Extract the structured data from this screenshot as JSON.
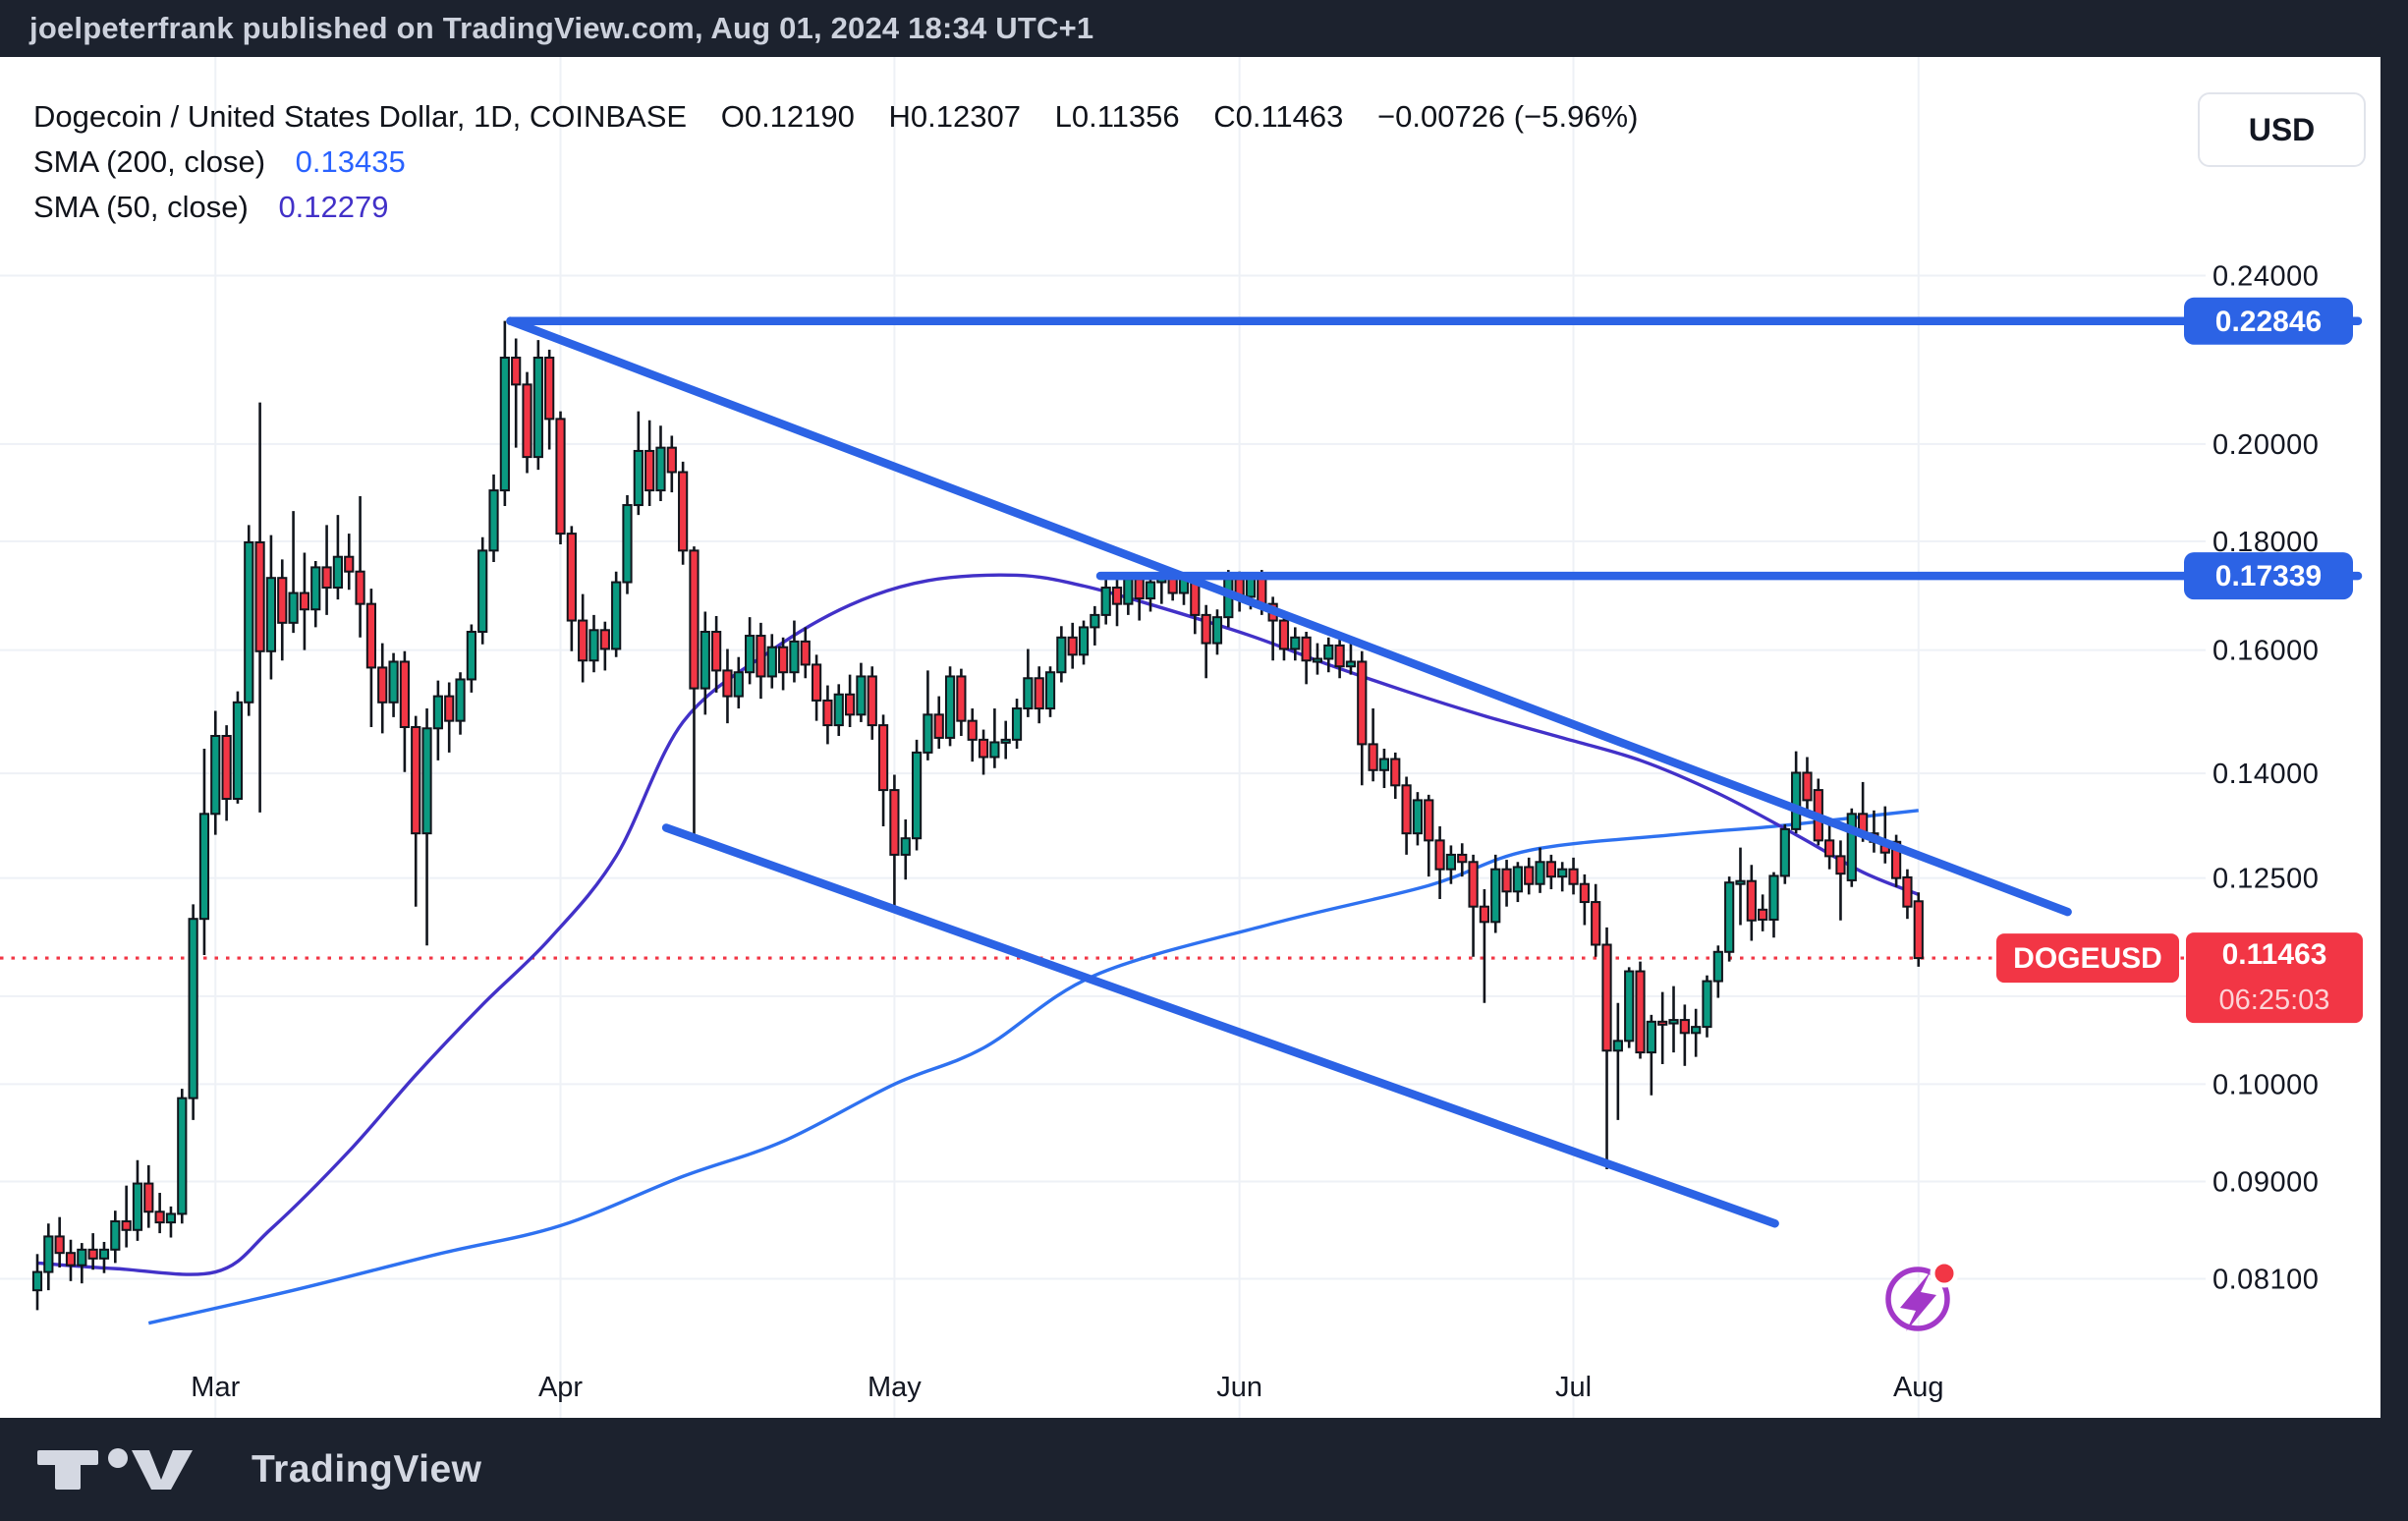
{
  "banner": {
    "text": "joelpeterfrank published on TradingView.com, Aug 01, 2024 18:34 UTC+1"
  },
  "header": {
    "title": "Dogecoin / United States Dollar, 1D, COINBASE",
    "ohlc": [
      {
        "k": "O",
        "v": "0.12190"
      },
      {
        "k": "H",
        "v": "0.12307"
      },
      {
        "k": "L",
        "v": "0.11356"
      },
      {
        "k": "C",
        "v": "0.11463"
      }
    ],
    "change": "−0.00726 (−5.96%)",
    "indicators": [
      {
        "label": "SMA (200, close)",
        "value": "0.13435",
        "color": "#2962ff"
      },
      {
        "label": "SMA (50, close)",
        "value": "0.12279",
        "color": "#4231c8"
      }
    ]
  },
  "currency_button": "USD",
  "footer": {
    "brand": "TradingView"
  },
  "chart_data": {
    "type": "candlestick",
    "title": "DOGEUSD 1D COINBASE",
    "x_range_dates": [
      "2024-02-14",
      "2024-08-01"
    ],
    "scale": "log",
    "plot": {
      "top": 58,
      "bottom": 1443,
      "right": 2225,
      "page_right": 2423,
      "x0": 38,
      "dx": 11.33
    },
    "log_map": {
      "a": -1061,
      "b": 940
    },
    "colors": {
      "up": "#0a9a81",
      "down": "#f23645",
      "outline": "#11151c",
      "grid": "#eef1f6",
      "drawing": "#2c63e5",
      "sma200": "#2e71f0",
      "sma50": "#4231c8",
      "last": "#f23645",
      "axis_text": "#131722",
      "bg": "#ffffff",
      "icon": "#a238c8"
    },
    "y_ticks": [
      {
        "p": 0.24,
        "label": "0.24000"
      },
      {
        "p": 0.2,
        "label": "0.20000"
      },
      {
        "p": 0.18,
        "label": "0.18000"
      },
      {
        "p": 0.16,
        "label": "0.16000"
      },
      {
        "p": 0.14,
        "label": "0.14000"
      },
      {
        "p": 0.125,
        "label": "0.12500"
      },
      {
        "p": 0.11,
        "label": ""
      },
      {
        "p": 0.1,
        "label": "0.10000"
      },
      {
        "p": 0.09,
        "label": "0.09000"
      },
      {
        "p": 0.081,
        "label": "0.08100"
      }
    ],
    "x_ticks": [
      {
        "i": 16,
        "label": "Mar"
      },
      {
        "i": 47,
        "label": "Apr"
      },
      {
        "i": 77,
        "label": "May"
      },
      {
        "i": 108,
        "label": "Jun"
      },
      {
        "i": 138,
        "label": "Jul"
      },
      {
        "i": 169,
        "label": "Aug"
      }
    ],
    "levels": [
      {
        "price": 0.22846,
        "label": "0.22846",
        "from_i": 42.5
      },
      {
        "price": 0.17339,
        "label": "0.17339",
        "from_i": 95.5
      }
    ],
    "trendlines": [
      {
        "from": [
          42.5,
          0.2285
        ],
        "to": [
          182.4,
          0.1205
        ]
      },
      {
        "from": [
          56.5,
          0.132
        ],
        "to": [
          156.1,
          0.086
        ]
      }
    ],
    "last": {
      "symbol": "DOGEUSD",
      "price": "0.11463",
      "countdown": "06:25:03",
      "value": 0.11463
    },
    "sma200_points": [
      [
        10,
        0.0772
      ],
      [
        23,
        0.08
      ],
      [
        36,
        0.0832
      ],
      [
        47,
        0.0858
      ],
      [
        58,
        0.0905
      ],
      [
        67,
        0.094
      ],
      [
        77,
        0.1
      ],
      [
        85,
        0.104
      ],
      [
        95,
        0.1125
      ],
      [
        111,
        0.119
      ],
      [
        125,
        0.124
      ],
      [
        134,
        0.1288
      ],
      [
        147,
        0.131
      ],
      [
        156,
        0.1322
      ],
      [
        164,
        0.1336
      ],
      [
        169,
        0.1345
      ]
    ],
    "sma50_points": [
      [
        0,
        0.0824
      ],
      [
        7,
        0.0819
      ],
      [
        16,
        0.0816
      ],
      [
        21,
        0.0855
      ],
      [
        28,
        0.093
      ],
      [
        34,
        0.101
      ],
      [
        40,
        0.109
      ],
      [
        46,
        0.117
      ],
      [
        52,
        0.128
      ],
      [
        58,
        0.148
      ],
      [
        66,
        0.16
      ],
      [
        73,
        0.168
      ],
      [
        80,
        0.1725
      ],
      [
        88,
        0.1735
      ],
      [
        94,
        0.1715
      ],
      [
        101,
        0.1675
      ],
      [
        109,
        0.1625
      ],
      [
        116,
        0.1575
      ],
      [
        123,
        0.153
      ],
      [
        130,
        0.149
      ],
      [
        137,
        0.1455
      ],
      [
        144,
        0.142
      ],
      [
        151,
        0.137
      ],
      [
        158,
        0.131
      ],
      [
        164,
        0.1258
      ],
      [
        169,
        0.1228
      ]
    ],
    "candles": [
      [
        0.08,
        0.0832,
        0.0783,
        0.0816
      ],
      [
        0.0816,
        0.086,
        0.08,
        0.0848
      ],
      [
        0.0848,
        0.0866,
        0.082,
        0.0833
      ],
      [
        0.0833,
        0.0845,
        0.0808,
        0.0822
      ],
      [
        0.0822,
        0.0842,
        0.0806,
        0.0836
      ],
      [
        0.0836,
        0.0851,
        0.0818,
        0.0828
      ],
      [
        0.0828,
        0.0843,
        0.0815,
        0.0836
      ],
      [
        0.0836,
        0.0872,
        0.0824,
        0.0862
      ],
      [
        0.0862,
        0.0896,
        0.0838,
        0.0854
      ],
      [
        0.0854,
        0.0921,
        0.0844,
        0.0898
      ],
      [
        0.0898,
        0.0916,
        0.0856,
        0.0871
      ],
      [
        0.0871,
        0.0889,
        0.0851,
        0.0861
      ],
      [
        0.0861,
        0.0876,
        0.0847,
        0.0869
      ],
      [
        0.0869,
        0.0995,
        0.086,
        0.0985
      ],
      [
        0.0985,
        0.1215,
        0.0962,
        0.1196
      ],
      [
        0.1196,
        0.1438,
        0.115,
        0.134
      ],
      [
        0.134,
        0.1498,
        0.131,
        0.1458
      ],
      [
        0.1458,
        0.1475,
        0.133,
        0.1362
      ],
      [
        0.1362,
        0.153,
        0.1355,
        0.1512
      ],
      [
        0.1512,
        0.1832,
        0.149,
        0.1798
      ],
      [
        0.1798,
        0.2092,
        0.1342,
        0.1598
      ],
      [
        0.1598,
        0.1812,
        0.155,
        0.173
      ],
      [
        0.173,
        0.1765,
        0.1582,
        0.1648
      ],
      [
        0.1648,
        0.186,
        0.163,
        0.1702
      ],
      [
        0.1702,
        0.1778,
        0.16,
        0.1672
      ],
      [
        0.1672,
        0.1762,
        0.164,
        0.175
      ],
      [
        0.175,
        0.1832,
        0.1662,
        0.1712
      ],
      [
        0.1712,
        0.1852,
        0.169,
        0.177
      ],
      [
        0.177,
        0.1815,
        0.1708,
        0.1742
      ],
      [
        0.1742,
        0.189,
        0.1622,
        0.1682
      ],
      [
        0.1682,
        0.171,
        0.1472,
        0.157
      ],
      [
        0.157,
        0.1612,
        0.1462,
        0.1512
      ],
      [
        0.1512,
        0.1595,
        0.1488,
        0.158
      ],
      [
        0.158,
        0.1598,
        0.1402,
        0.1472
      ],
      [
        0.1472,
        0.149,
        0.1212,
        0.1312
      ],
      [
        0.1312,
        0.1502,
        0.1162,
        0.147
      ],
      [
        0.147,
        0.1548,
        0.142,
        0.1522
      ],
      [
        0.1522,
        0.1545,
        0.1432,
        0.1482
      ],
      [
        0.1482,
        0.1562,
        0.146,
        0.155
      ],
      [
        0.155,
        0.1645,
        0.1528,
        0.1632
      ],
      [
        0.1632,
        0.1808,
        0.161,
        0.1782
      ],
      [
        0.1782,
        0.1935,
        0.176,
        0.1902
      ],
      [
        0.1902,
        0.2285,
        0.187,
        0.2196
      ],
      [
        0.2196,
        0.2242,
        0.1992,
        0.2133
      ],
      [
        0.2133,
        0.2162,
        0.1938,
        0.1972
      ],
      [
        0.1972,
        0.2238,
        0.1945,
        0.2196
      ],
      [
        0.2196,
        0.2215,
        0.1988,
        0.2055
      ],
      [
        0.2055,
        0.2072,
        0.1794,
        0.1815
      ],
      [
        0.1815,
        0.183,
        0.1598,
        0.1652
      ],
      [
        0.1652,
        0.17,
        0.1545,
        0.1582
      ],
      [
        0.1582,
        0.1662,
        0.1562,
        0.1635
      ],
      [
        0.1635,
        0.165,
        0.1565,
        0.1602
      ],
      [
        0.1602,
        0.1742,
        0.1588,
        0.1722
      ],
      [
        0.1722,
        0.1892,
        0.17,
        0.1872
      ],
      [
        0.1872,
        0.2072,
        0.1852,
        0.1985
      ],
      [
        0.1985,
        0.2052,
        0.187,
        0.1902
      ],
      [
        0.1902,
        0.204,
        0.188,
        0.1992
      ],
      [
        0.1992,
        0.2018,
        0.1898,
        0.194
      ],
      [
        0.194,
        0.1962,
        0.1755,
        0.1782
      ],
      [
        0.1782,
        0.179,
        0.1308,
        0.1535
      ],
      [
        0.1535,
        0.1668,
        0.1492,
        0.1632
      ],
      [
        0.1632,
        0.166,
        0.1528,
        0.1565
      ],
      [
        0.1565,
        0.1602,
        0.1478,
        0.1522
      ],
      [
        0.1522,
        0.1588,
        0.1502,
        0.1562
      ],
      [
        0.1562,
        0.1658,
        0.1542,
        0.1625
      ],
      [
        0.1625,
        0.1648,
        0.1518,
        0.1555
      ],
      [
        0.1555,
        0.1628,
        0.1535,
        0.1605
      ],
      [
        0.1605,
        0.1622,
        0.1532,
        0.1562
      ],
      [
        0.1562,
        0.1652,
        0.1545,
        0.1615
      ],
      [
        0.1615,
        0.164,
        0.1552,
        0.1575
      ],
      [
        0.1575,
        0.1592,
        0.1482,
        0.1515
      ],
      [
        0.1515,
        0.154,
        0.1445,
        0.1475
      ],
      [
        0.1475,
        0.1542,
        0.1458,
        0.1525
      ],
      [
        0.1525,
        0.1558,
        0.1472,
        0.1492
      ],
      [
        0.1492,
        0.1578,
        0.148,
        0.1555
      ],
      [
        0.1555,
        0.1572,
        0.1452,
        0.1475
      ],
      [
        0.1475,
        0.1492,
        0.1322,
        0.1375
      ],
      [
        0.1375,
        0.1398,
        0.1208,
        0.1282
      ],
      [
        0.1282,
        0.1332,
        0.1248,
        0.1305
      ],
      [
        0.1305,
        0.1452,
        0.1288,
        0.1432
      ],
      [
        0.1432,
        0.1565,
        0.142,
        0.1492
      ],
      [
        0.1492,
        0.1522,
        0.1438,
        0.1455
      ],
      [
        0.1455,
        0.1572,
        0.1442,
        0.1555
      ],
      [
        0.1555,
        0.1568,
        0.1458,
        0.1482
      ],
      [
        0.1482,
        0.1502,
        0.1418,
        0.1452
      ],
      [
        0.1452,
        0.1468,
        0.1398,
        0.1425
      ],
      [
        0.1425,
        0.1502,
        0.1408,
        0.1448
      ],
      [
        0.1448,
        0.1482,
        0.1422,
        0.1452
      ],
      [
        0.1452,
        0.1518,
        0.1438,
        0.1502
      ],
      [
        0.1502,
        0.1602,
        0.1488,
        0.1552
      ],
      [
        0.1552,
        0.1572,
        0.1478,
        0.1502
      ],
      [
        0.1502,
        0.1572,
        0.1488,
        0.1562
      ],
      [
        0.1562,
        0.1642,
        0.1545,
        0.1622
      ],
      [
        0.1622,
        0.1648,
        0.1568,
        0.1592
      ],
      [
        0.1592,
        0.1652,
        0.1575,
        0.164
      ],
      [
        0.164,
        0.1678,
        0.1608,
        0.1662
      ],
      [
        0.1662,
        0.1732,
        0.1645,
        0.1712
      ],
      [
        0.1712,
        0.1728,
        0.1642,
        0.1682
      ],
      [
        0.1682,
        0.1734,
        0.1662,
        0.1728
      ],
      [
        0.1728,
        0.174,
        0.1652,
        0.1692
      ],
      [
        0.1692,
        0.1738,
        0.1668,
        0.1722
      ],
      [
        0.1722,
        0.1734,
        0.1682,
        0.173
      ],
      [
        0.173,
        0.1738,
        0.1688,
        0.1702
      ],
      [
        0.1702,
        0.1734,
        0.168,
        0.1728
      ],
      [
        0.1728,
        0.1735,
        0.1628,
        0.1662
      ],
      [
        0.1662,
        0.168,
        0.1552,
        0.1612
      ],
      [
        0.1612,
        0.1672,
        0.1592,
        0.1658
      ],
      [
        0.1658,
        0.1745,
        0.164,
        0.1728
      ],
      [
        0.1728,
        0.1742,
        0.1668,
        0.1695
      ],
      [
        0.1695,
        0.174,
        0.1672,
        0.1732
      ],
      [
        0.1732,
        0.1745,
        0.1662,
        0.1682
      ],
      [
        0.1682,
        0.1695,
        0.1582,
        0.1652
      ],
      [
        0.1652,
        0.1668,
        0.1582,
        0.1602
      ],
      [
        0.1602,
        0.164,
        0.1582,
        0.1622
      ],
      [
        0.1622,
        0.1632,
        0.1542,
        0.1582
      ],
      [
        0.1582,
        0.1612,
        0.1558,
        0.1585
      ],
      [
        0.1585,
        0.1622,
        0.1562,
        0.1608
      ],
      [
        0.1608,
        0.1618,
        0.1552,
        0.1572
      ],
      [
        0.1572,
        0.1622,
        0.1558,
        0.158
      ],
      [
        0.158,
        0.1598,
        0.1382,
        0.1445
      ],
      [
        0.1445,
        0.1502,
        0.1388,
        0.1405
      ],
      [
        0.1405,
        0.1438,
        0.1378,
        0.1422
      ],
      [
        0.1422,
        0.1432,
        0.1362,
        0.1382
      ],
      [
        0.1382,
        0.1395,
        0.1282,
        0.1312
      ],
      [
        0.1312,
        0.1372,
        0.1295,
        0.136
      ],
      [
        0.136,
        0.1368,
        0.1252,
        0.1302
      ],
      [
        0.1302,
        0.1322,
        0.1222,
        0.1262
      ],
      [
        0.1262,
        0.1295,
        0.1242,
        0.1282
      ],
      [
        0.1282,
        0.1298,
        0.1252,
        0.1272
      ],
      [
        0.1272,
        0.1282,
        0.1148,
        0.1212
      ],
      [
        0.1212,
        0.1235,
        0.1092,
        0.1192
      ],
      [
        0.1192,
        0.1282,
        0.1178,
        0.1262
      ],
      [
        0.1262,
        0.1275,
        0.1212,
        0.1232
      ],
      [
        0.1232,
        0.1272,
        0.1218,
        0.1265
      ],
      [
        0.1265,
        0.1278,
        0.1228,
        0.1242
      ],
      [
        0.1242,
        0.1292,
        0.123,
        0.1272
      ],
      [
        0.1272,
        0.1282,
        0.1235,
        0.1252
      ],
      [
        0.1252,
        0.1272,
        0.1232,
        0.1262
      ],
      [
        0.1262,
        0.1278,
        0.1228,
        0.1242
      ],
      [
        0.1242,
        0.1255,
        0.1188,
        0.1218
      ],
      [
        0.1218,
        0.1242,
        0.1148,
        0.1163
      ],
      [
        0.1163,
        0.1185,
        0.0912,
        0.1037
      ],
      [
        0.1037,
        0.1092,
        0.0962,
        0.1048
      ],
      [
        0.1048,
        0.1135,
        0.104,
        0.113
      ],
      [
        0.113,
        0.1142,
        0.1028,
        0.1035
      ],
      [
        0.1035,
        0.1078,
        0.0988,
        0.107
      ],
      [
        0.107,
        0.1105,
        0.1022,
        0.1068
      ],
      [
        0.1068,
        0.1112,
        0.1035,
        0.1072
      ],
      [
        0.1072,
        0.109,
        0.102,
        0.1057
      ],
      [
        0.1057,
        0.1085,
        0.103,
        0.1064
      ],
      [
        0.1064,
        0.1125,
        0.1052,
        0.1118
      ],
      [
        0.1118,
        0.1162,
        0.1098,
        0.1154
      ],
      [
        0.1154,
        0.1252,
        0.1142,
        0.1244
      ],
      [
        0.1244,
        0.1292,
        0.1188,
        0.1246
      ],
      [
        0.1246,
        0.1268,
        0.1168,
        0.1194
      ],
      [
        0.1208,
        0.1228,
        0.118,
        0.1195
      ],
      [
        0.1195,
        0.1258,
        0.1172,
        0.1253
      ],
      [
        0.1253,
        0.1325,
        0.1242,
        0.1318
      ],
      [
        0.1318,
        0.1434,
        0.1312,
        0.1401
      ],
      [
        0.1401,
        0.1425,
        0.1338,
        0.136
      ],
      [
        0.1375,
        0.1392,
        0.1295,
        0.1302
      ],
      [
        0.1302,
        0.133,
        0.1262,
        0.128
      ],
      [
        0.128,
        0.1302,
        0.1194,
        0.1256
      ],
      [
        0.1247,
        0.1348,
        0.1238,
        0.134
      ],
      [
        0.134,
        0.1387,
        0.13,
        0.1312
      ],
      [
        0.1312,
        0.1345,
        0.1285,
        0.13
      ],
      [
        0.1295,
        0.1351,
        0.127,
        0.1285
      ],
      [
        0.13,
        0.131,
        0.1238,
        0.125
      ],
      [
        0.1251,
        0.1262,
        0.1196,
        0.1212
      ],
      [
        0.1219,
        0.12307,
        0.11356,
        0.11463
      ]
    ]
  }
}
